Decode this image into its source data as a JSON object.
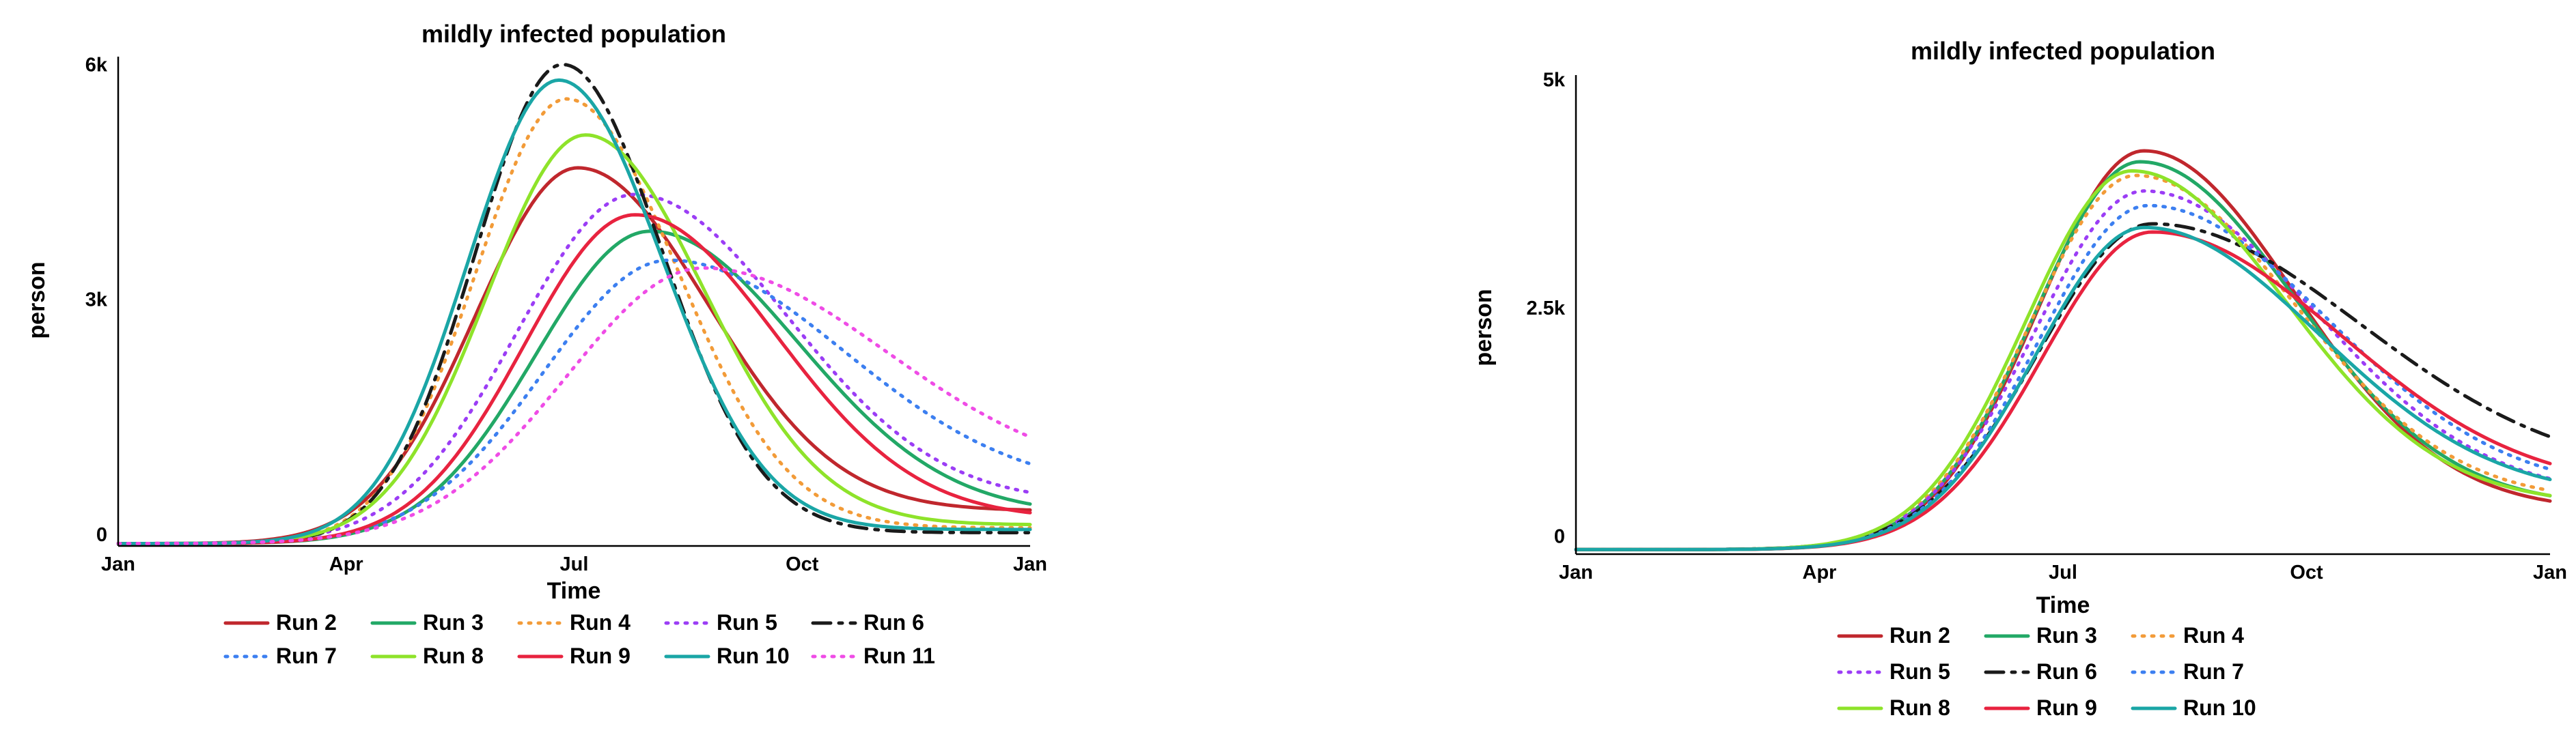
{
  "chart_data": [
    {
      "type": "line",
      "title": "mildly infected population",
      "xlabel": "Time",
      "ylabel": "person",
      "x_ticks": [
        "Jan",
        "Apr",
        "Jul",
        "Oct",
        "Jan"
      ],
      "y_ticks": [
        "0",
        "3k",
        "6k"
      ],
      "y_tick_values": [
        0,
        3000,
        6000
      ],
      "xlim": [
        0,
        12
      ],
      "ylim": [
        -150,
        6100
      ],
      "legend_position": "bottom",
      "series": [
        {
          "name": "Run 2",
          "color": "#c0272d",
          "dash": "solid",
          "peak_x": 6.05,
          "peak_y": 4680,
          "sl": 1.35,
          "sr": 1.7,
          "start_y": -120,
          "end_y": 300
        },
        {
          "name": "Run 3",
          "color": "#22a866",
          "dash": "solid",
          "peak_x": 7.0,
          "peak_y": 3870,
          "sl": 1.5,
          "sr": 1.95,
          "start_y": -120,
          "end_y": 250
        },
        {
          "name": "Run 4",
          "color": "#f29b38",
          "dash": "dot",
          "peak_x": 5.9,
          "peak_y": 5560,
          "sl": 1.2,
          "sr": 1.45,
          "start_y": -120,
          "end_y": 80
        },
        {
          "name": "Run 5",
          "color": "#9b3df5",
          "dash": "dot",
          "peak_x": 6.8,
          "peak_y": 4340,
          "sl": 1.55,
          "sr": 2.0,
          "start_y": -120,
          "end_y": 400
        },
        {
          "name": "Run 6",
          "color": "#1a1a1a",
          "dash": "dashdot",
          "peak_x": 5.85,
          "peak_y": 6000,
          "sl": 1.15,
          "sr": 1.3,
          "start_y": -120,
          "end_y": 20
        },
        {
          "name": "Run 7",
          "color": "#3c7ff0",
          "dash": "dot",
          "peak_x": 7.25,
          "peak_y": 3500,
          "sl": 1.65,
          "sr": 2.3,
          "start_y": -120,
          "end_y": 550
        },
        {
          "name": "Run 8",
          "color": "#8ee32a",
          "dash": "solid",
          "peak_x": 6.15,
          "peak_y": 5100,
          "sl": 1.3,
          "sr": 1.55,
          "start_y": -120,
          "end_y": 120
        },
        {
          "name": "Run 9",
          "color": "#e8233f",
          "dash": "solid",
          "peak_x": 6.8,
          "peak_y": 4080,
          "sl": 1.45,
          "sr": 1.85,
          "start_y": -120,
          "end_y": 200
        },
        {
          "name": "Run 10",
          "color": "#1aa6a6",
          "dash": "solid",
          "peak_x": 5.8,
          "peak_y": 5800,
          "sl": 1.2,
          "sr": 1.35,
          "start_y": -120,
          "end_y": 60
        },
        {
          "name": "Run 11",
          "color": "#ef4ce6",
          "dash": "dot",
          "peak_x": 7.7,
          "peak_y": 3400,
          "sl": 1.8,
          "sr": 2.4,
          "start_y": -120,
          "end_y": 700
        }
      ]
    },
    {
      "type": "line",
      "title": "mildly infected population",
      "xlabel": "Time",
      "ylabel": "person",
      "x_ticks": [
        "Jan",
        "Apr",
        "Jul",
        "Oct",
        "Jan"
      ],
      "y_ticks": [
        "0",
        "2.5k",
        "5k"
      ],
      "y_tick_values": [
        0,
        2500,
        5000
      ],
      "xlim": [
        0,
        12
      ],
      "ylim": [
        -200,
        5050
      ],
      "legend_position": "bottom",
      "series": [
        {
          "name": "Run 2",
          "color": "#c0272d",
          "dash": "solid",
          "peak_x": 7.0,
          "peak_y": 4220,
          "sl": 1.3,
          "sr": 1.85,
          "start_y": -150,
          "end_y": 280
        },
        {
          "name": "Run 3",
          "color": "#22a866",
          "dash": "solid",
          "peak_x": 6.95,
          "peak_y": 4100,
          "sl": 1.3,
          "sr": 1.9,
          "start_y": -150,
          "end_y": 330
        },
        {
          "name": "Run 4",
          "color": "#f29b38",
          "dash": "dot",
          "peak_x": 6.9,
          "peak_y": 3950,
          "sl": 1.3,
          "sr": 1.95,
          "start_y": -150,
          "end_y": 380
        },
        {
          "name": "Run 5",
          "color": "#9b3df5",
          "dash": "dot",
          "peak_x": 7.0,
          "peak_y": 3780,
          "sl": 1.35,
          "sr": 2.1,
          "start_y": -150,
          "end_y": 430
        },
        {
          "name": "Run 6",
          "color": "#1a1a1a",
          "dash": "dashdot",
          "peak_x": 7.1,
          "peak_y": 3420,
          "sl": 1.4,
          "sr": 2.55,
          "start_y": -150,
          "end_y": 650
        },
        {
          "name": "Run 7",
          "color": "#3c7ff0",
          "dash": "dot",
          "peak_x": 7.05,
          "peak_y": 3620,
          "sl": 1.35,
          "sr": 2.2,
          "start_y": -150,
          "end_y": 480
        },
        {
          "name": "Run 8",
          "color": "#8ee32a",
          "dash": "solid",
          "peak_x": 6.85,
          "peak_y": 4000,
          "sl": 1.3,
          "sr": 1.9,
          "start_y": -150,
          "end_y": 350
        },
        {
          "name": "Run 9",
          "color": "#e8233f",
          "dash": "solid",
          "peak_x": 7.1,
          "peak_y": 3330,
          "sl": 1.35,
          "sr": 2.3,
          "start_y": -150,
          "end_y": 500
        },
        {
          "name": "Run 10",
          "color": "#1aa6a6",
          "dash": "solid",
          "peak_x": 7.0,
          "peak_y": 3380,
          "sl": 1.33,
          "sr": 2.15,
          "start_y": -150,
          "end_y": 420
        }
      ]
    }
  ]
}
